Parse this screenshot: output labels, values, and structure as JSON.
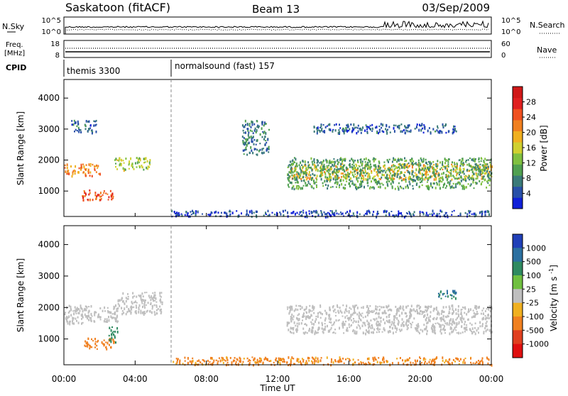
{
  "header": {
    "station": "Saskatoon (fitACF)",
    "beam": "Beam 13",
    "date": "03/Sep/2009"
  },
  "nsky_panel": {
    "left_label": "N.Sky",
    "left_ticks": [
      "10^5",
      "10^0"
    ],
    "right_ticks": [
      "10^5",
      "10^0"
    ],
    "right_label": "N.Search"
  },
  "freq_panel": {
    "left_label_1": "Freq.",
    "left_label_2": "[MHz]",
    "left_ticks": [
      "18",
      "8"
    ],
    "right_ticks": [
      "60",
      "0"
    ],
    "right_label": "Nave"
  },
  "cpid_panel": {
    "label": "CPID",
    "modes": [
      {
        "name": "themis 3300",
        "start_hour": 0
      },
      {
        "name": "normalsound (fast) 157",
        "start_hour": 6
      }
    ]
  },
  "x_axis": {
    "label": "Time UT",
    "ticks": [
      "00:00",
      "04:00",
      "08:00",
      "12:00",
      "16:00",
      "20:00",
      "00:00"
    ],
    "range_hours": [
      0,
      24
    ]
  },
  "chart_data": [
    {
      "type": "heatmap",
      "name": "Power",
      "ylabel": "Slant Range [km]",
      "yticks": [
        "1000",
        "2000",
        "3000",
        "4000"
      ],
      "ylim": [
        180,
        4600
      ],
      "xlim_hours": [
        0,
        24
      ],
      "colorbar": {
        "label": "Power [dB]",
        "ticks": [
          "4",
          "8",
          "12",
          "16",
          "20",
          "24",
          "28"
        ],
        "range": [
          0,
          32
        ],
        "colors": [
          "#1020d8",
          "#2850a8",
          "#3a7a78",
          "#50a050",
          "#80c040",
          "#d0d030",
          "#f0b020",
          "#f08020",
          "#f05020",
          "#e02020",
          "#d01818"
        ]
      },
      "regions": [
        {
          "t": [
            0.0,
            2.0
          ],
          "range": [
            1500,
            1900
          ],
          "value": 22
        },
        {
          "t": [
            1.0,
            2.8
          ],
          "range": [
            700,
            1050
          ],
          "value": 24
        },
        {
          "t": [
            2.8,
            4.8
          ],
          "range": [
            1700,
            2100
          ],
          "value": 14
        },
        {
          "t": [
            0.4,
            1.8
          ],
          "range": [
            2900,
            3300
          ],
          "value": 6
        },
        {
          "t": [
            10.0,
            11.5
          ],
          "range": [
            2200,
            3300
          ],
          "value": 7
        },
        {
          "t": [
            12.5,
            24.0
          ],
          "range": [
            1400,
            1900
          ],
          "value": 18
        },
        {
          "t": [
            12.5,
            24.0
          ],
          "range": [
            1100,
            2100
          ],
          "value": 10
        },
        {
          "t": [
            14.0,
            22.0
          ],
          "range": [
            2900,
            3200
          ],
          "value": 5
        },
        {
          "t": [
            6.0,
            24.0
          ],
          "range": [
            200,
            400
          ],
          "value": 4
        }
      ]
    },
    {
      "type": "heatmap",
      "name": "Velocity",
      "ylabel": "Slant Range [km]",
      "yticks": [
        "1000",
        "2000",
        "3000",
        "4000"
      ],
      "ylim": [
        180,
        4600
      ],
      "xlim_hours": [
        0,
        24
      ],
      "colorbar": {
        "label": "Velocity [m s-1]",
        "ticks": [
          "1000",
          "500",
          "100",
          "25",
          "-25",
          "-100",
          "-500",
          "-1000"
        ],
        "colors": [
          "#2040b8",
          "#2c70a0",
          "#2f8a60",
          "#70c040",
          "#bfbfbf",
          "#f0b020",
          "#f08020",
          "#e04020",
          "#e01010"
        ]
      },
      "regions": [
        {
          "t": [
            0.0,
            3.0
          ],
          "range": [
            1500,
            2100
          ],
          "value": 0
        },
        {
          "t": [
            1.0,
            2.8
          ],
          "range": [
            700,
            1050
          ],
          "value": -150
        },
        {
          "t": [
            2.5,
            3.0
          ],
          "range": [
            900,
            1400
          ],
          "value": 300
        },
        {
          "t": [
            3.0,
            5.5
          ],
          "range": [
            1800,
            2500
          ],
          "value": 0
        },
        {
          "t": [
            12.5,
            24.0
          ],
          "range": [
            1200,
            2100
          ],
          "value": 0
        },
        {
          "t": [
            6.0,
            24.0
          ],
          "range": [
            200,
            450
          ],
          "value": -120
        },
        {
          "t": [
            21.0,
            22.0
          ],
          "range": [
            2300,
            2600
          ],
          "value": 500
        }
      ]
    }
  ]
}
